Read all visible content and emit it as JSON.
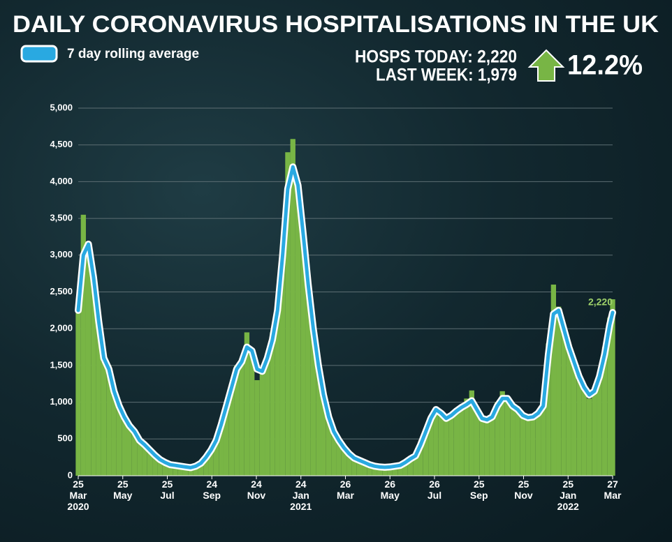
{
  "chart_data": {
    "type": "bar",
    "title": "DAILY CORONAVIRUS HOSPITALISATIONS IN THE UK",
    "stats": {
      "today": "HOSPS TODAY: 2,220",
      "last_week": "LAST WEEK: 1,979",
      "change": "12.2%"
    },
    "legend": "top-left",
    "grid": true,
    "ylim": [
      0,
      5000
    ],
    "yticks": [
      0,
      500,
      {
        "value": 1000,
        "label": "1,000"
      },
      {
        "value": 1500,
        "label": "1,500"
      },
      {
        "value": 2000,
        "label": "2,000"
      },
      {
        "value": 2500,
        "label": "2,500"
      },
      {
        "value": 3000,
        "label": "3,000"
      },
      {
        "value": 3500,
        "label": "3,500"
      },
      {
        "value": 4000,
        "label": "4,000"
      },
      {
        "value": 4500,
        "label": "4,500"
      },
      {
        "value": 5000,
        "label": "5,000"
      }
    ],
    "xlim": [
      "2020-03-25",
      "2022-03-27"
    ],
    "xticks": [
      {
        "value": "2020-03-25",
        "label": "25 Mar 2020"
      },
      {
        "value": "2020-05-25",
        "label": "25 May"
      },
      {
        "value": "2020-07-25",
        "label": "25 Jul"
      },
      {
        "value": "2020-09-24",
        "label": "24 Sep"
      },
      {
        "value": "2020-11-24",
        "label": "24 Nov"
      },
      {
        "value": "2021-01-24",
        "label": "24 Jan 2021"
      },
      {
        "value": "2021-03-26",
        "label": "26 Mar"
      },
      {
        "value": "2021-05-26",
        "label": "26 May"
      },
      {
        "value": "2021-07-26",
        "label": "26 Jul"
      },
      {
        "value": "2021-09-25",
        "label": "25 Sep"
      },
      {
        "value": "2021-11-25",
        "label": "25 Nov"
      },
      {
        "value": "2022-01-25",
        "label": "25 Jan 2022"
      },
      {
        "value": "2022-03-27",
        "label": "27 Mar"
      }
    ],
    "x": [
      "2020-03-25",
      "2020-04-01",
      "2020-04-08",
      "2020-04-15",
      "2020-04-22",
      "2020-04-29",
      "2020-05-06",
      "2020-05-13",
      "2020-05-20",
      "2020-05-27",
      "2020-06-03",
      "2020-06-10",
      "2020-06-17",
      "2020-06-24",
      "2020-07-01",
      "2020-07-08",
      "2020-07-15",
      "2020-07-22",
      "2020-07-29",
      "2020-08-05",
      "2020-08-12",
      "2020-08-19",
      "2020-08-26",
      "2020-09-02",
      "2020-09-09",
      "2020-09-16",
      "2020-09-23",
      "2020-09-30",
      "2020-10-07",
      "2020-10-14",
      "2020-10-21",
      "2020-10-28",
      "2020-11-04",
      "2020-11-11",
      "2020-11-18",
      "2020-11-25",
      "2020-12-02",
      "2020-12-09",
      "2020-12-16",
      "2020-12-23",
      "2020-12-30",
      "2021-01-06",
      "2021-01-13",
      "2021-01-20",
      "2021-01-27",
      "2021-02-03",
      "2021-02-10",
      "2021-02-17",
      "2021-02-24",
      "2021-03-03",
      "2021-03-10",
      "2021-03-17",
      "2021-03-24",
      "2021-03-31",
      "2021-04-07",
      "2021-04-14",
      "2021-04-21",
      "2021-04-28",
      "2021-05-05",
      "2021-05-12",
      "2021-05-19",
      "2021-05-26",
      "2021-06-02",
      "2021-06-09",
      "2021-06-16",
      "2021-06-23",
      "2021-06-30",
      "2021-07-07",
      "2021-07-14",
      "2021-07-21",
      "2021-07-28",
      "2021-08-04",
      "2021-08-11",
      "2021-08-18",
      "2021-08-25",
      "2021-09-01",
      "2021-09-08",
      "2021-09-15",
      "2021-09-22",
      "2021-09-29",
      "2021-10-06",
      "2021-10-13",
      "2021-10-20",
      "2021-10-27",
      "2021-11-03",
      "2021-11-10",
      "2021-11-17",
      "2021-11-24",
      "2021-12-01",
      "2021-12-08",
      "2021-12-15",
      "2021-12-22",
      "2021-12-29",
      "2022-01-05",
      "2022-01-12",
      "2022-01-19",
      "2022-01-26",
      "2022-02-02",
      "2022-02-09",
      "2022-02-16",
      "2022-02-23",
      "2022-03-02",
      "2022-03-09",
      "2022-03-16",
      "2022-03-23",
      "2022-03-27"
    ],
    "series": [
      {
        "type": "bar",
        "color": "#78b545",
        "values": [
          2300,
          3550,
          3100,
          2650,
          2150,
          1550,
          1500,
          1100,
          980,
          780,
          700,
          580,
          500,
          400,
          360,
          270,
          230,
          170,
          160,
          130,
          135,
          115,
          110,
          140,
          180,
          260,
          370,
          500,
          740,
          980,
          1250,
          1500,
          1580,
          1950,
          1650,
          1300,
          1450,
          1650,
          1950,
          2350,
          3150,
          4400,
          4580,
          3850,
          3200,
          2500,
          1950,
          1450,
          1080,
          780,
          580,
          470,
          370,
          290,
          230,
          200,
          170,
          145,
          125,
          115,
          110,
          125,
          130,
          145,
          190,
          240,
          280,
          450,
          640,
          820,
          930,
          830,
          760,
          840,
          900,
          960,
          1050,
          1160,
          870,
          750,
          740,
          820,
          1000,
          1150,
          1080,
          920,
          880,
          800,
          760,
          790,
          870,
          960,
          1800,
          2600,
          2300,
          1950,
          1700,
          1500,
          1300,
          1180,
          1050,
          1200,
          1400,
          1750,
          2150,
          2400
        ]
      },
      {
        "type": "line",
        "name": "7 day rolling average",
        "color": "#29a9e1",
        "values": [
          2250,
          3000,
          3150,
          2700,
          2100,
          1600,
          1450,
          1150,
          950,
          800,
          680,
          600,
          480,
          420,
          350,
          280,
          220,
          180,
          150,
          140,
          130,
          120,
          110,
          130,
          170,
          250,
          350,
          480,
          700,
          950,
          1200,
          1450,
          1550,
          1750,
          1700,
          1450,
          1420,
          1600,
          1850,
          2250,
          3000,
          3900,
          4200,
          3950,
          3300,
          2600,
          2000,
          1500,
          1100,
          800,
          600,
          480,
          380,
          300,
          240,
          210,
          180,
          150,
          130,
          120,
          115,
          120,
          130,
          140,
          180,
          230,
          270,
          420,
          600,
          780,
          900,
          850,
          780,
          820,
          880,
          930,
          970,
          1020,
          900,
          780,
          760,
          800,
          950,
          1050,
          1050,
          950,
          900,
          820,
          790,
          800,
          850,
          950,
          1650,
          2200,
          2250,
          2000,
          1750,
          1550,
          1350,
          1200,
          1100,
          1150,
          1350,
          1650,
          2050,
          2220
        ]
      }
    ],
    "annotations": [
      {
        "label": "2,220",
        "x": "2022-03-27",
        "value": 2220
      }
    ]
  }
}
